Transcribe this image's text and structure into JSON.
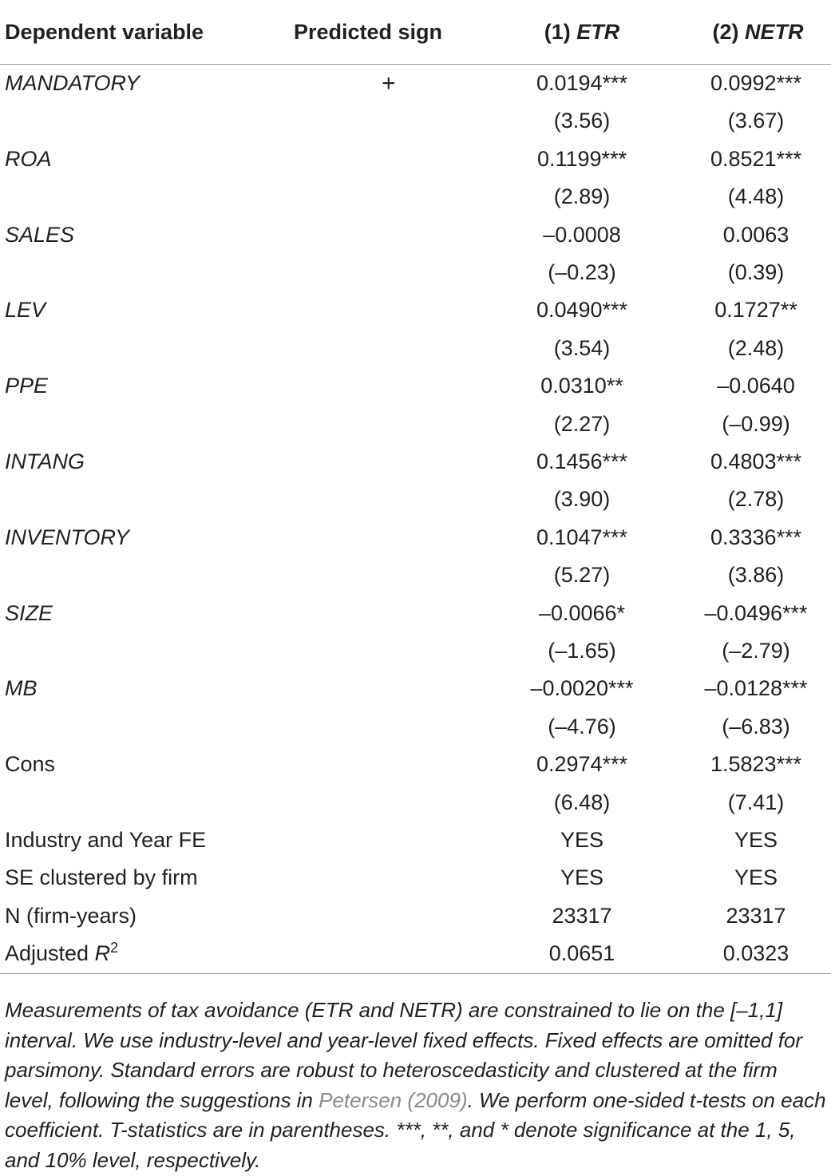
{
  "header": {
    "col_variable": "Dependent variable",
    "col_sign": "Predicted sign",
    "col_model1_prefix": "(1) ",
    "col_model1_name": "ETR",
    "col_model2_prefix": "(2) ",
    "col_model2_name": "NETR"
  },
  "rows": [
    {
      "label": "MANDATORY",
      "italic": true,
      "sign": "+",
      "m1": "0.0194***",
      "m2": "0.0992***"
    },
    {
      "label": "",
      "italic": false,
      "sign": "",
      "m1": "(3.56)",
      "m2": "(3.67)"
    },
    {
      "label": "ROA",
      "italic": true,
      "sign": "",
      "m1": "0.1199***",
      "m2": "0.8521***"
    },
    {
      "label": "",
      "italic": false,
      "sign": "",
      "m1": "(2.89)",
      "m2": "(4.48)"
    },
    {
      "label": "SALES",
      "italic": true,
      "sign": "",
      "m1": "–0.0008",
      "m2": "0.0063"
    },
    {
      "label": "",
      "italic": false,
      "sign": "",
      "m1": "(–0.23)",
      "m2": "(0.39)"
    },
    {
      "label": "LEV",
      "italic": true,
      "sign": "",
      "m1": "0.0490***",
      "m2": "0.1727**"
    },
    {
      "label": "",
      "italic": false,
      "sign": "",
      "m1": "(3.54)",
      "m2": "(2.48)"
    },
    {
      "label": "PPE",
      "italic": true,
      "sign": "",
      "m1": "0.0310**",
      "m2": "–0.0640"
    },
    {
      "label": "",
      "italic": false,
      "sign": "",
      "m1": "(2.27)",
      "m2": "(–0.99)"
    },
    {
      "label": "INTANG",
      "italic": true,
      "sign": "",
      "m1": "0.1456***",
      "m2": "0.4803***"
    },
    {
      "label": "",
      "italic": false,
      "sign": "",
      "m1": "(3.90)",
      "m2": "(2.78)"
    },
    {
      "label": "INVENTORY",
      "italic": true,
      "sign": "",
      "m1": "0.1047***",
      "m2": "0.3336***"
    },
    {
      "label": "",
      "italic": false,
      "sign": "",
      "m1": "(5.27)",
      "m2": "(3.86)"
    },
    {
      "label": "SIZE",
      "italic": true,
      "sign": "",
      "m1": "–0.0066*",
      "m2": "–0.0496***"
    },
    {
      "label": "",
      "italic": false,
      "sign": "",
      "m1": "(–1.65)",
      "m2": "(–2.79)"
    },
    {
      "label": "MB",
      "italic": true,
      "sign": "",
      "m1": "–0.0020***",
      "m2": "–0.0128***"
    },
    {
      "label": "",
      "italic": false,
      "sign": "",
      "m1": "(–4.76)",
      "m2": "(–6.83)"
    },
    {
      "label": "Cons",
      "italic": false,
      "sign": "",
      "m1": "0.2974***",
      "m2": "1.5823***"
    },
    {
      "label": "",
      "italic": false,
      "sign": "",
      "m1": "(6.48)",
      "m2": "(7.41)"
    },
    {
      "label": "Industry and Year FE",
      "italic": false,
      "sign": "",
      "m1": "YES",
      "m2": "YES"
    },
    {
      "label": "SE clustered by firm",
      "italic": false,
      "sign": "",
      "m1": "YES",
      "m2": "YES"
    },
    {
      "label": "N (firm-years)",
      "italic": false,
      "sign": "",
      "m1": "23317",
      "m2": "23317"
    }
  ],
  "adj_r2": {
    "label_prefix": "Adjusted ",
    "label_symbol": "R",
    "label_sup": "2",
    "m1": "0.0651",
    "m2": "0.0323"
  },
  "note": {
    "text_before": "Measurements of tax avoidance (ETR and NETR) are constrained to lie on the [–1,1] interval. We use industry-level and year-level fixed effects. Fixed effects are omitted for parsimony. Standard errors are robust to heteroscedasticity and clustered at the firm level, following the suggestions in ",
    "citation": "Petersen (2009)",
    "text_after": ". We perform one-sided t-tests on each coefficient. T-statistics are in parentheses. ***, **, and * denote significance at the 1, 5, and 10% level, respectively."
  }
}
